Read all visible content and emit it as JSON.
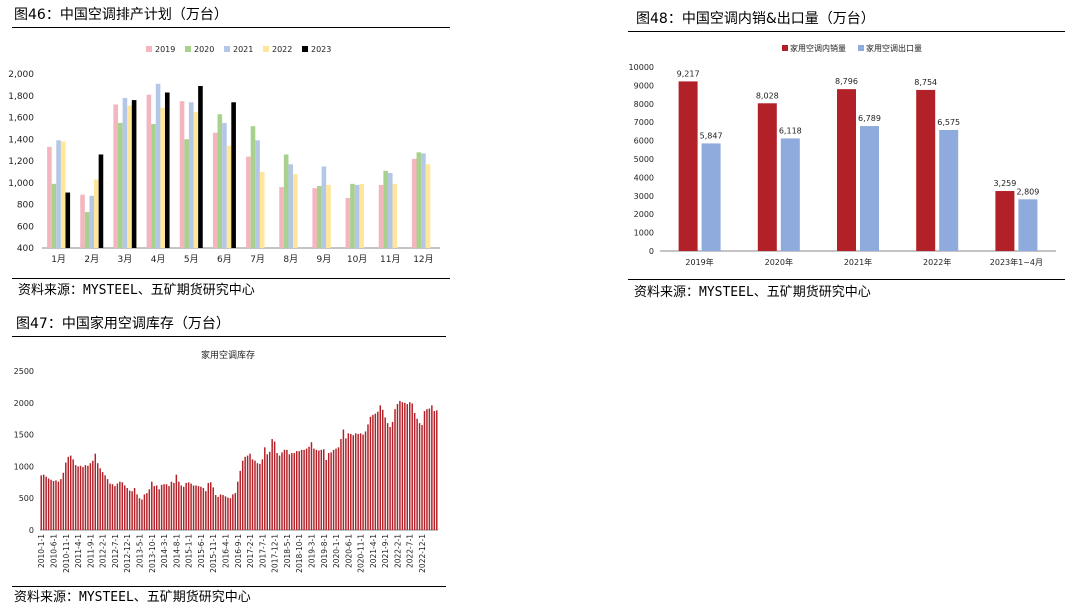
{
  "panels": {
    "fig46": {
      "title": "图46：中国空调排产计划（万台）",
      "source": "资料来源：MYSTEEL、五矿期货研究中心"
    },
    "fig47": {
      "title": "图47：中国家用空调库存（万台）",
      "source": "资料来源：MYSTEEL、五矿期货研究中心"
    },
    "fig48": {
      "title": "图48：中国空调内销&出口量（万台）",
      "source": "资料来源：MYSTEEL、五矿期货研究中心"
    }
  },
  "chart_data": [
    {
      "id": "fig46",
      "type": "bar",
      "title": "",
      "categories": [
        "1月",
        "2月",
        "3月",
        "4月",
        "5月",
        "6月",
        "7月",
        "8月",
        "9月",
        "10月",
        "11月",
        "12月"
      ],
      "series": [
        {
          "name": "2019",
          "color": "#F4B6BE",
          "values": [
            1330,
            890,
            1720,
            1810,
            1750,
            1460,
            1240,
            960,
            950,
            860,
            980,
            1220
          ]
        },
        {
          "name": "2020",
          "color": "#A9D18E",
          "values": [
            990,
            730,
            1550,
            1540,
            1400,
            1630,
            1520,
            1260,
            970,
            990,
            1110,
            1280
          ]
        },
        {
          "name": "2021",
          "color": "#B4C7E7",
          "values": [
            1390,
            880,
            1780,
            1910,
            1740,
            1550,
            1390,
            1170,
            1150,
            980,
            1090,
            1270
          ]
        },
        {
          "name": "2022",
          "color": "#FFE699",
          "values": [
            1380,
            1030,
            1710,
            1690,
            1650,
            1340,
            1100,
            1080,
            980,
            990,
            990,
            1170
          ]
        },
        {
          "name": "2023",
          "color": "#000000",
          "values": [
            910,
            1260,
            1760,
            1830,
            1890,
            1740,
            null,
            null,
            null,
            null,
            null,
            null
          ]
        }
      ],
      "ylim": [
        400,
        2000
      ],
      "yticks": [
        400,
        600,
        800,
        1000,
        1200,
        1400,
        1600,
        1800,
        2000
      ],
      "ytick_labels": [
        "400",
        "600",
        "800",
        "1,000",
        "1,200",
        "1,400",
        "1,600",
        "1,800",
        "2,000"
      ],
      "legend": "top",
      "grid": false
    },
    {
      "id": "fig48",
      "type": "bar",
      "title": "",
      "categories": [
        "2019年",
        "2020年",
        "2021年",
        "2022年",
        "2023年1~4月"
      ],
      "series": [
        {
          "name": "家用空调内销量",
          "color": "#B22028",
          "values": [
            9217,
            8028,
            8796,
            8754,
            3259
          ],
          "labels": [
            "9,217",
            "8,028",
            "8,796",
            "8,754",
            "3,259"
          ]
        },
        {
          "name": "家用空调出口量",
          "color": "#8FAADC",
          "values": [
            5847,
            6118,
            6789,
            6575,
            2809
          ],
          "labels": [
            "5,847",
            "6,118",
            "6,789",
            "6,575",
            "2,809"
          ]
        }
      ],
      "ylim": [
        0,
        10000
      ],
      "yticks": [
        0,
        1000,
        2000,
        3000,
        4000,
        5000,
        6000,
        7000,
        8000,
        9000,
        10000
      ],
      "ytick_labels": [
        "0",
        "1000",
        "2000",
        "3000",
        "4000",
        "5000",
        "6000",
        "7000",
        "8000",
        "9000",
        "10000"
      ],
      "legend": "top",
      "grid": false
    },
    {
      "id": "fig47",
      "type": "bar",
      "title": "家用空调库存",
      "color": "#B22028",
      "x_start": "2010-1",
      "x_tick_labels": [
        "2010-1-1",
        "2010-6-1",
        "2010-11-1",
        "2011-4-1",
        "2011-9-1",
        "2012-2-1",
        "2012-7-1",
        "2012-12-1",
        "2013-5-1",
        "2013-10-1",
        "2014-3-1",
        "2014-8-1",
        "2015-1-1",
        "2015-6-1",
        "2015-11-1",
        "2016-4-1",
        "2016-9-1",
        "2017-2-1",
        "2017-7-1",
        "2017-12-1",
        "2018-5-1",
        "2018-10-1",
        "2019-3-1",
        "2019-8-1",
        "2020-1-1",
        "2020-6-1",
        "2020-11-1",
        "2021-4-1",
        "2021-9-1",
        "2022-2-1",
        "2022-7-1",
        "2022-12-1"
      ],
      "values": [
        860,
        870,
        840,
        810,
        790,
        770,
        780,
        760,
        800,
        900,
        1060,
        1150,
        1170,
        1110,
        1020,
        1000,
        1010,
        990,
        1020,
        1010,
        1050,
        1090,
        1200,
        1050,
        970,
        910,
        860,
        800,
        730,
        720,
        690,
        730,
        760,
        750,
        700,
        660,
        620,
        610,
        660,
        560,
        500,
        480,
        560,
        580,
        640,
        760,
        690,
        700,
        640,
        710,
        720,
        720,
        690,
        760,
        740,
        870,
        760,
        700,
        680,
        740,
        750,
        730,
        700,
        700,
        690,
        680,
        660,
        610,
        740,
        750,
        670,
        550,
        520,
        560,
        550,
        530,
        510,
        500,
        560,
        580,
        760,
        930,
        1090,
        1150,
        1170,
        1200,
        1110,
        1090,
        1050,
        1040,
        1110,
        1300,
        1190,
        1230,
        1430,
        1390,
        1210,
        1170,
        1220,
        1260,
        1260,
        1190,
        1210,
        1210,
        1240,
        1240,
        1260,
        1260,
        1280,
        1310,
        1380,
        1280,
        1260,
        1250,
        1260,
        1270,
        1100,
        1210,
        1220,
        1260,
        1280,
        1300,
        1430,
        1580,
        1440,
        1520,
        1510,
        1490,
        1520,
        1510,
        1520,
        1500,
        1550,
        1660,
        1780,
        1810,
        1830,
        1860,
        1960,
        1890,
        1770,
        1680,
        1620,
        1700,
        1900,
        1980,
        2030,
        2010,
        2000,
        1980,
        2010,
        1990,
        1840,
        1750,
        1680,
        1650,
        1870,
        1900,
        1910,
        1960,
        1870,
        1880
      ],
      "ylim": [
        0,
        2500
      ],
      "yticks": [
        0,
        500,
        1000,
        1500,
        2000,
        2500
      ],
      "ytick_labels": [
        "0",
        "500",
        "1000",
        "1500",
        "2000",
        "2500"
      ],
      "grid": false
    }
  ]
}
